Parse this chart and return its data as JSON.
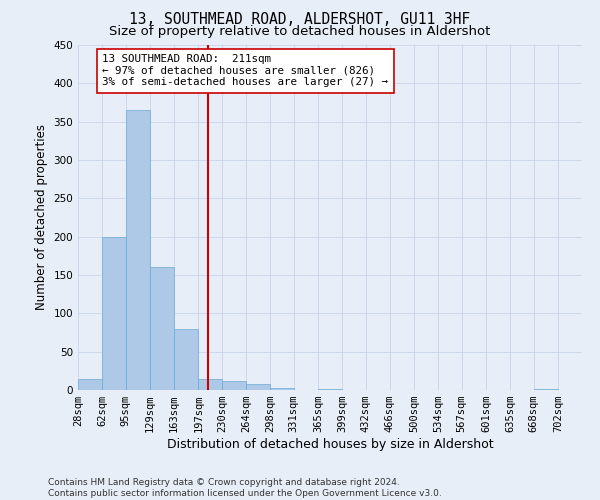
{
  "title": "13, SOUTHMEAD ROAD, ALDERSHOT, GU11 3HF",
  "subtitle": "Size of property relative to detached houses in Aldershot",
  "xlabel": "Distribution of detached houses by size in Aldershot",
  "ylabel": "Number of detached properties",
  "bin_labels": [
    "28sqm",
    "62sqm",
    "95sqm",
    "129sqm",
    "163sqm",
    "197sqm",
    "230sqm",
    "264sqm",
    "298sqm",
    "331sqm",
    "365sqm",
    "399sqm",
    "432sqm",
    "466sqm",
    "500sqm",
    "534sqm",
    "567sqm",
    "601sqm",
    "635sqm",
    "668sqm",
    "702sqm"
  ],
  "bar_values": [
    15,
    200,
    365,
    160,
    80,
    15,
    12,
    8,
    3,
    0,
    1,
    0,
    0,
    0,
    0,
    0,
    0,
    0,
    0,
    1,
    0
  ],
  "bar_color": "#aec9e8",
  "bar_edge_color": "#6aaad4",
  "grid_color": "#c8d4e8",
  "background_color": "#e8eef8",
  "vline_color": "#cc0000",
  "vline_x_data": 211,
  "annotation_text": "13 SOUTHMEAD ROAD:  211sqm\n← 97% of detached houses are smaller (826)\n3% of semi-detached houses are larger (27) →",
  "annotation_box_color": "#ffffff",
  "annotation_box_edge_color": "#cc0000",
  "title_fontsize": 10.5,
  "subtitle_fontsize": 9.5,
  "tick_fontsize": 7.5,
  "xlabel_fontsize": 9,
  "ylabel_fontsize": 8.5,
  "annotation_fontsize": 7.8,
  "footer_text": "Contains HM Land Registry data © Crown copyright and database right 2024.\nContains public sector information licensed under the Open Government Licence v3.0.",
  "footer_fontsize": 6.5,
  "ylim": [
    0,
    450
  ],
  "bin_edges": [
    28,
    62,
    95,
    129,
    163,
    197,
    230,
    264,
    298,
    331,
    365,
    399,
    432,
    466,
    500,
    534,
    567,
    601,
    635,
    668,
    702,
    736
  ]
}
